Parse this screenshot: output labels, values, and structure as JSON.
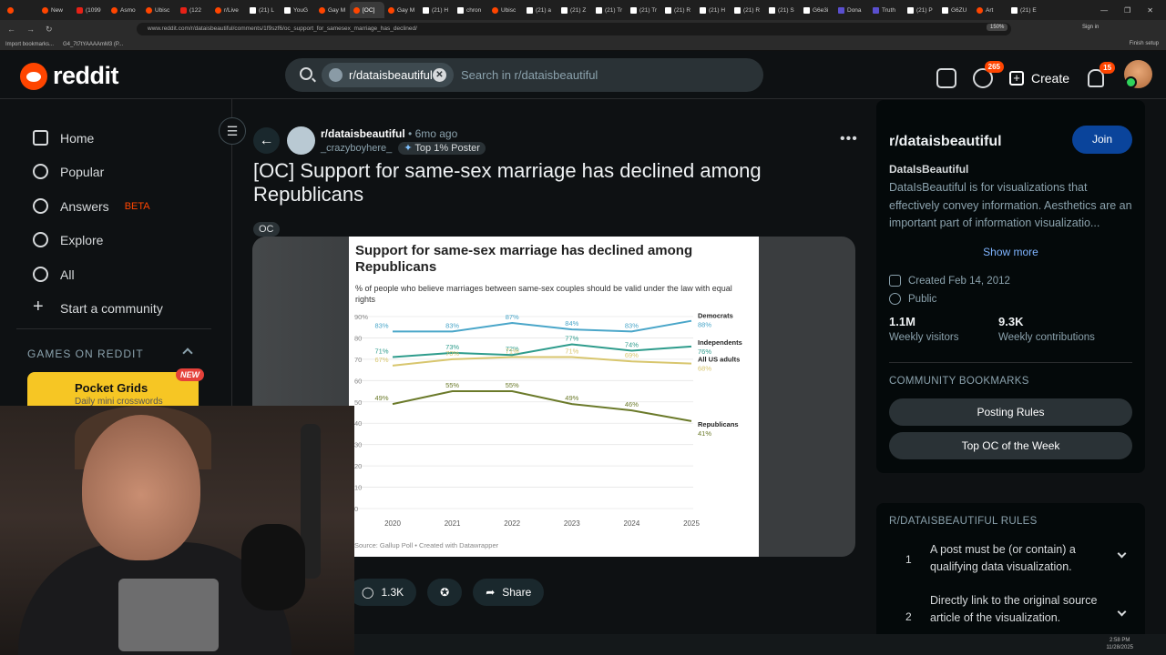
{
  "browser": {
    "tabs": [
      {
        "label": "",
        "fav": "r"
      },
      {
        "label": "New",
        "fav": "r"
      },
      {
        "label": "(1099",
        "fav": "y"
      },
      {
        "label": "Asmo",
        "fav": "r"
      },
      {
        "label": "Ubisc",
        "fav": "r"
      },
      {
        "label": "(122",
        "fav": "y"
      },
      {
        "label": "r/Live",
        "fav": "r"
      },
      {
        "label": "(21) L",
        "fav": "x"
      },
      {
        "label": "YouG",
        "fav": "x"
      },
      {
        "label": "Gay M",
        "fav": "r"
      },
      {
        "label": "[OC]",
        "fav": "r",
        "active": true
      },
      {
        "label": "Gay M",
        "fav": "r"
      },
      {
        "label": "(21) H",
        "fav": "x"
      },
      {
        "label": "chron",
        "fav": "x"
      },
      {
        "label": "Ubisc",
        "fav": "r"
      },
      {
        "label": "(21) a",
        "fav": "x"
      },
      {
        "label": "(21) Z",
        "fav": "x"
      },
      {
        "label": "(21) Tr",
        "fav": "x"
      },
      {
        "label": "(21) Tr",
        "fav": "x"
      },
      {
        "label": "(21) R",
        "fav": "x"
      },
      {
        "label": "(21) H",
        "fav": "x"
      },
      {
        "label": "(21) R",
        "fav": "x"
      },
      {
        "label": "(21) S",
        "fav": "x"
      },
      {
        "label": "G6e3i",
        "fav": "x"
      },
      {
        "label": "Dona",
        "fav": "t"
      },
      {
        "label": "Truth",
        "fav": "t"
      },
      {
        "label": "(21) P",
        "fav": "x"
      },
      {
        "label": "G6ZU",
        "fav": "x"
      },
      {
        "label": "Art",
        "fav": "r"
      },
      {
        "label": "(21) E",
        "fav": "x"
      }
    ],
    "url": "www.reddit.com/r/dataisbeautiful/comments/1f9szf6/oc_support_for_samesex_marriage_has_declined/",
    "zoom": "150%",
    "signin": "Sign in",
    "bookmarks": [
      "Import bookmarks...",
      "G4_7t7tYAAAAmM3 (P..."
    ],
    "finish_setup": "Finish setup"
  },
  "header": {
    "brand": "reddit",
    "search_chip": "r/dataisbeautiful",
    "search_placeholder": "Search in r/dataisbeautiful",
    "chat_badge": "265",
    "create_label": "Create",
    "notif_badge": "15"
  },
  "sidebar": {
    "items": [
      {
        "label": "Home",
        "icon": "home-icon"
      },
      {
        "label": "Popular",
        "icon": "popular-icon"
      },
      {
        "label": "Answers",
        "icon": "answers-icon",
        "badge": "BETA"
      },
      {
        "label": "Explore",
        "icon": "explore-icon"
      },
      {
        "label": "All",
        "icon": "all-icon"
      },
      {
        "label": "Start a community",
        "icon": "plus-icon"
      }
    ],
    "games_label": "GAMES ON REDDIT",
    "game": {
      "title": "Pocket Grids",
      "subtitle": "Daily mini crosswords",
      "badge": "NEW"
    }
  },
  "post": {
    "subreddit": "r/dataisbeautiful",
    "time": "• 6mo ago",
    "author": "_crazyboyhere_",
    "author_flair": "Top 1% Poster",
    "title": "[OC] Support for same-sex marriage has declined among Republicans",
    "flair": "OC",
    "comments": "1.3K",
    "share": "Share"
  },
  "chart_data": {
    "type": "line",
    "title": "Support for same-sex marriage has declined among Republicans",
    "subtitle": "% of people who believe marriages between same-sex couples should be valid under the law with equal rights",
    "source": "Source: Gallup Poll • Created with Datawrapper",
    "x": [
      "2020",
      "2021",
      "2022",
      "2023",
      "2024",
      "2025"
    ],
    "y_ticks": [
      "90%",
      "80",
      "70",
      "60",
      "50",
      "40",
      "30",
      "20",
      "10",
      "0"
    ],
    "ylim": [
      0,
      90
    ],
    "grid": true,
    "series": [
      {
        "name": "Democrats",
        "values": [
          83,
          83,
          87,
          84,
          83,
          88
        ],
        "color": "#4aa6c9",
        "end_label": "88%"
      },
      {
        "name": "Independents",
        "values": [
          71,
          73,
          72,
          77,
          74,
          76
        ],
        "color": "#2e9c8c",
        "end_label": "76%"
      },
      {
        "name": "All US adults",
        "values": [
          67,
          70,
          71,
          71,
          69,
          68
        ],
        "color": "#d8c66e",
        "end_label": "68%"
      },
      {
        "name": "Republicans",
        "values": [
          49,
          55,
          55,
          49,
          46,
          41
        ],
        "color": "#6b7a2a",
        "end_label": "41%"
      }
    ],
    "point_labels": [
      {
        "series": 0,
        "idx": [
          0,
          1,
          2,
          3,
          4
        ],
        "texts": [
          "83%",
          "83%",
          "87%",
          "84%",
          "83%"
        ]
      },
      {
        "series": 1,
        "idx": [
          0,
          1,
          2,
          3,
          4
        ],
        "texts": [
          "71%",
          "73%",
          "72%",
          "77%",
          "74%"
        ]
      },
      {
        "series": 2,
        "idx": [
          0,
          1,
          3,
          4
        ],
        "texts": [
          "67%",
          "70%",
          "71%",
          "69%"
        ],
        "custom": {
          "2": "71%"
        }
      },
      {
        "series": 3,
        "idx": [
          0,
          1,
          2,
          3,
          4
        ],
        "texts": [
          "49%",
          "55%",
          "55%",
          "49%",
          "46%"
        ]
      }
    ]
  },
  "right": {
    "name": "r/dataisbeautiful",
    "join": "Join",
    "tagline": "DataIsBeautiful",
    "description": "DataIsBeautiful is for visualizations that effectively convey information. Aesthetics are an important part of information visualizatio...",
    "show_more": "Show more",
    "created": "Created Feb 14, 2012",
    "visibility": "Public",
    "visitors_n": "1.1M",
    "visitors_l": "Weekly visitors",
    "contrib_n": "9.3K",
    "contrib_l": "Weekly contributions",
    "bookmarks_title": "COMMUNITY BOOKMARKS",
    "bookmarks": [
      "Posting Rules",
      "Top OC of the Week"
    ],
    "rules_title": "R/DATAISBEAUTIFUL RULES",
    "rules": [
      {
        "n": "1",
        "text": "A post must be (or contain) a qualifying data visualization."
      },
      {
        "n": "2",
        "text": "Directly link to the original source article of the visualization."
      }
    ]
  },
  "taskbar": {
    "time": "2:58 PM",
    "date": "11/28/2025"
  }
}
